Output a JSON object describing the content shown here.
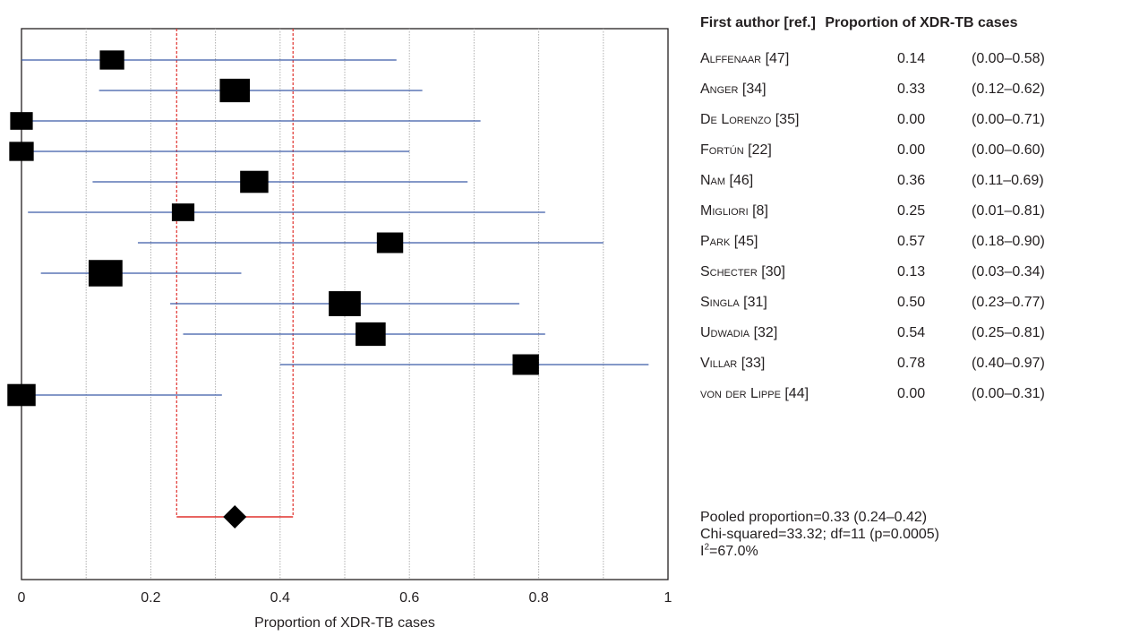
{
  "table": {
    "header_author": "First author [ref.]",
    "header_proportion": "Proportion of XDR-TB cases",
    "rows": [
      {
        "author": "Alffenaar [47]",
        "prop": "0.14",
        "ci": "(0.00–0.58)"
      },
      {
        "author": "Anger [34]",
        "prop": "0.33",
        "ci": "(0.12–0.62)"
      },
      {
        "author": "De Lorenzo [35]",
        "prop": "0.00",
        "ci": "(0.00–0.71)"
      },
      {
        "author": "Fortún [22]",
        "prop": "0.00",
        "ci": "(0.00–0.60)"
      },
      {
        "author": "Nam [46]",
        "prop": "0.36",
        "ci": "(0.11–0.69)"
      },
      {
        "author": "Migliori [8]",
        "prop": "0.25",
        "ci": "(0.01–0.81)"
      },
      {
        "author": "Park [45]",
        "prop": "0.57",
        "ci": "(0.18–0.90)"
      },
      {
        "author": "Schecter [30]",
        "prop": "0.13",
        "ci": "(0.03–0.34)"
      },
      {
        "author": "Singla [31]",
        "prop": "0.50",
        "ci": "(0.23–0.77)"
      },
      {
        "author": "Udwadia [32]",
        "prop": "0.54",
        "ci": "(0.25–0.81)"
      },
      {
        "author": "Villar [33]",
        "prop": "0.78",
        "ci": "(0.40–0.97)"
      },
      {
        "author": "von der Lippe [44]",
        "prop": "0.00",
        "ci": "(0.00–0.31)"
      }
    ]
  },
  "summary": {
    "pooled": "Pooled proportion=0.33 (0.24–0.42)",
    "chi": "Chi-squared=33.32; df=11  (p=0.0005)",
    "i2_prefix": "I",
    "i2_sup": "2",
    "i2_value": "=67.0%"
  },
  "colors": {
    "ci_line": "#3a5aa8",
    "pooled_interval": "#e0322d",
    "marker": "#000000",
    "grid": "#b0b0b0"
  },
  "chart_data": {
    "type": "forest",
    "xlabel": "Proportion of XDR-TB cases",
    "xlim": [
      0,
      1
    ],
    "xticks": [
      0,
      0.2,
      0.4,
      0.6,
      0.8,
      1
    ],
    "xtick_labels": [
      "0",
      "0.2",
      "0.4",
      "0.6",
      "0.8",
      "1"
    ],
    "grid_x": [
      0.1,
      0.2,
      0.3,
      0.4,
      0.5,
      0.6,
      0.7,
      0.8,
      0.9
    ],
    "studies": [
      {
        "estimate": 0.14,
        "lower": 0.0,
        "upper": 0.58,
        "weight": 7
      },
      {
        "estimate": 0.33,
        "lower": 0.12,
        "upper": 0.62,
        "weight": 10
      },
      {
        "estimate": 0.0,
        "lower": 0.0,
        "upper": 0.71,
        "weight": 6
      },
      {
        "estimate": 0.0,
        "lower": 0.0,
        "upper": 0.6,
        "weight": 7
      },
      {
        "estimate": 0.36,
        "lower": 0.11,
        "upper": 0.69,
        "weight": 9
      },
      {
        "estimate": 0.25,
        "lower": 0.01,
        "upper": 0.81,
        "weight": 6
      },
      {
        "estimate": 0.57,
        "lower": 0.18,
        "upper": 0.9,
        "weight": 8
      },
      {
        "estimate": 0.13,
        "lower": 0.03,
        "upper": 0.34,
        "weight": 12
      },
      {
        "estimate": 0.5,
        "lower": 0.23,
        "upper": 0.77,
        "weight": 11
      },
      {
        "estimate": 0.54,
        "lower": 0.25,
        "upper": 0.81,
        "weight": 10
      },
      {
        "estimate": 0.78,
        "lower": 0.4,
        "upper": 0.97,
        "weight": 8
      },
      {
        "estimate": 0.0,
        "lower": 0.0,
        "upper": 0.31,
        "weight": 9
      }
    ],
    "pooled": {
      "estimate": 0.33,
      "lower": 0.24,
      "upper": 0.42
    }
  }
}
